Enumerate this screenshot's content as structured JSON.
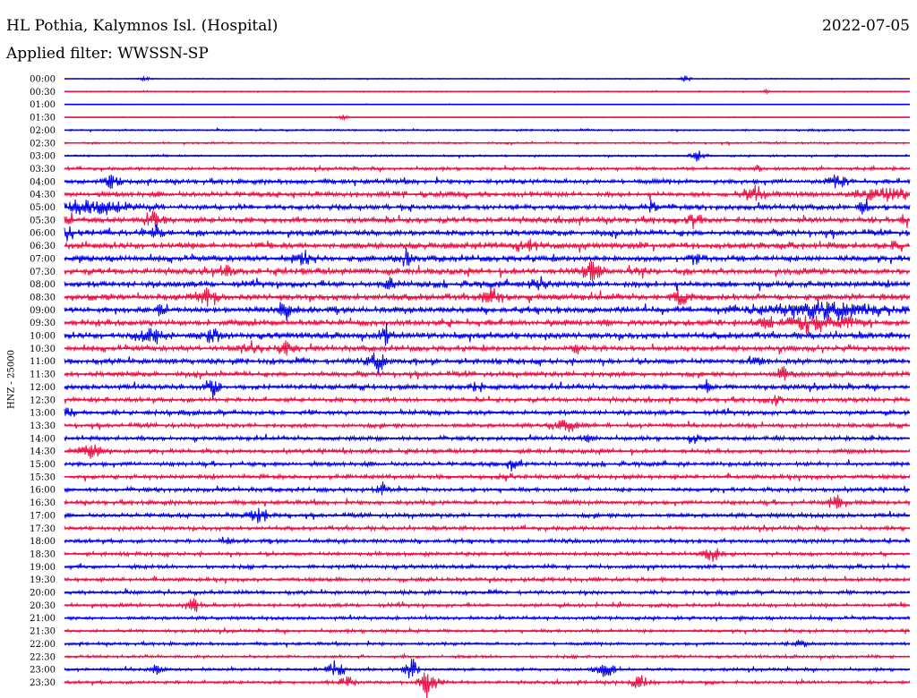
{
  "header": {
    "station": "HL Pothia, Kalymnos Isl. (Hospital)",
    "date": "2022-07-05",
    "filter": "Applied filter: WWSSN-SP",
    "channel_label": "HNZ - 25000"
  },
  "colors": {
    "trace_a": "#0000ee",
    "trace_b": "#ee1144"
  },
  "chart_data": {
    "type": "line",
    "title": "HL Pothia, Kalymnos Isl. (Hospital)",
    "subtitle": "Applied filter: WWSSN-SP",
    "date": "2022-07-05",
    "ylabel": "HNZ - 25000",
    "xlabel": "",
    "grid": false,
    "row_labels": [
      "00:00",
      "00:30",
      "01:00",
      "01:30",
      "02:00",
      "02:30",
      "03:00",
      "03:30",
      "04:00",
      "04:30",
      "05:00",
      "05:30",
      "06:00",
      "06:30",
      "07:00",
      "07:30",
      "08:00",
      "08:30",
      "09:00",
      "09:30",
      "10:00",
      "10:30",
      "11:00",
      "11:30",
      "12:00",
      "12:30",
      "13:00",
      "13:30",
      "14:00",
      "14:30",
      "15:00",
      "15:30",
      "16:00",
      "16:30",
      "17:00",
      "17:30",
      "18:00",
      "18:30",
      "19:00",
      "19:30",
      "20:00",
      "20:30",
      "21:00",
      "21:30",
      "22:00",
      "22:30",
      "23:00",
      "23:30"
    ],
    "row_colors": [
      "blue",
      "red"
    ],
    "noise_level": [
      0.4,
      0.5,
      0.3,
      0.4,
      0.8,
      0.9,
      0.9,
      1.5,
      2.2,
      2.5,
      2.5,
      2.8,
      2.8,
      3.0,
      3.0,
      3.0,
      3.0,
      3.0,
      3.0,
      3.0,
      3.0,
      2.6,
      2.6,
      2.4,
      2.4,
      2.2,
      2.2,
      2.0,
      2.0,
      2.0,
      2.0,
      2.0,
      2.0,
      2.0,
      2.0,
      1.9,
      1.9,
      1.8,
      1.8,
      1.8,
      1.8,
      1.7,
      1.6,
      1.5,
      1.4,
      1.4,
      1.4,
      1.5
    ],
    "events": [
      {
        "row": 0,
        "pos": 0.095,
        "amp": 4,
        "width": 0.006
      },
      {
        "row": 0,
        "pos": 0.735,
        "amp": 4,
        "width": 0.006
      },
      {
        "row": 1,
        "pos": 0.095,
        "amp": 2,
        "width": 0.005
      },
      {
        "row": 1,
        "pos": 0.83,
        "amp": 2,
        "width": 0.005
      },
      {
        "row": 3,
        "pos": 0.33,
        "amp": 3,
        "width": 0.006
      },
      {
        "row": 6,
        "pos": 0.75,
        "amp": 8,
        "width": 0.008
      },
      {
        "row": 7,
        "pos": 0.82,
        "amp": 4,
        "width": 0.006
      },
      {
        "row": 8,
        "pos": 0.055,
        "amp": 8,
        "width": 0.01
      },
      {
        "row": 8,
        "pos": 0.915,
        "amp": 9,
        "width": 0.01
      },
      {
        "row": 9,
        "pos": 0.815,
        "amp": 12,
        "width": 0.012
      },
      {
        "row": 9,
        "pos": 0.97,
        "amp": 7,
        "width": 0.03
      },
      {
        "row": 10,
        "pos": 0.035,
        "amp": 7,
        "width": 0.05
      },
      {
        "row": 10,
        "pos": 0.695,
        "amp": 8,
        "width": 0.006
      },
      {
        "row": 10,
        "pos": 0.945,
        "amp": 9,
        "width": 0.006
      },
      {
        "row": 11,
        "pos": 0.005,
        "amp": 8,
        "width": 0.006
      },
      {
        "row": 11,
        "pos": 0.105,
        "amp": 10,
        "width": 0.01
      },
      {
        "row": 11,
        "pos": 0.745,
        "amp": 7,
        "width": 0.01
      },
      {
        "row": 11,
        "pos": 0.995,
        "amp": 8,
        "width": 0.005
      },
      {
        "row": 12,
        "pos": 0.005,
        "amp": 9,
        "width": 0.006
      },
      {
        "row": 12,
        "pos": 0.11,
        "amp": 9,
        "width": 0.006
      },
      {
        "row": 13,
        "pos": 0.545,
        "amp": 10,
        "width": 0.01
      },
      {
        "row": 13,
        "pos": 0.98,
        "amp": 6,
        "width": 0.006
      },
      {
        "row": 14,
        "pos": 0.285,
        "amp": 9,
        "width": 0.012
      },
      {
        "row": 14,
        "pos": 0.405,
        "amp": 12,
        "width": 0.006
      },
      {
        "row": 14,
        "pos": 0.745,
        "amp": 8,
        "width": 0.006
      },
      {
        "row": 15,
        "pos": 0.19,
        "amp": 6,
        "width": 0.008
      },
      {
        "row": 15,
        "pos": 0.625,
        "amp": 11,
        "width": 0.01
      },
      {
        "row": 15,
        "pos": 0.68,
        "amp": 7,
        "width": 0.008
      },
      {
        "row": 16,
        "pos": 0.56,
        "amp": 10,
        "width": 0.008
      },
      {
        "row": 16,
        "pos": 0.385,
        "amp": 6,
        "width": 0.006
      },
      {
        "row": 17,
        "pos": 0.17,
        "amp": 11,
        "width": 0.012
      },
      {
        "row": 17,
        "pos": 0.505,
        "amp": 12,
        "width": 0.01
      },
      {
        "row": 17,
        "pos": 0.73,
        "amp": 8,
        "width": 0.01
      },
      {
        "row": 18,
        "pos": 0.115,
        "amp": 9,
        "width": 0.006
      },
      {
        "row": 18,
        "pos": 0.26,
        "amp": 10,
        "width": 0.01
      },
      {
        "row": 18,
        "pos": 0.9,
        "amp": 9,
        "width": 0.08
      },
      {
        "row": 19,
        "pos": 0.895,
        "amp": 10,
        "width": 0.04
      },
      {
        "row": 19,
        "pos": 0.83,
        "amp": 8,
        "width": 0.01
      },
      {
        "row": 20,
        "pos": 0.105,
        "amp": 8,
        "width": 0.015
      },
      {
        "row": 20,
        "pos": 0.175,
        "amp": 8,
        "width": 0.01
      },
      {
        "row": 20,
        "pos": 0.38,
        "amp": 12,
        "width": 0.006
      },
      {
        "row": 21,
        "pos": 0.22,
        "amp": 9,
        "width": 0.012
      },
      {
        "row": 21,
        "pos": 0.26,
        "amp": 9,
        "width": 0.008
      },
      {
        "row": 21,
        "pos": 0.61,
        "amp": 7,
        "width": 0.008
      },
      {
        "row": 22,
        "pos": 0.37,
        "amp": 12,
        "width": 0.01
      },
      {
        "row": 22,
        "pos": 0.82,
        "amp": 5,
        "width": 0.006
      },
      {
        "row": 23,
        "pos": 0.85,
        "amp": 8,
        "width": 0.008
      },
      {
        "row": 24,
        "pos": 0.175,
        "amp": 11,
        "width": 0.01
      },
      {
        "row": 24,
        "pos": 0.49,
        "amp": 7,
        "width": 0.008
      },
      {
        "row": 24,
        "pos": 0.76,
        "amp": 7,
        "width": 0.006
      },
      {
        "row": 25,
        "pos": 0.84,
        "amp": 8,
        "width": 0.006
      },
      {
        "row": 26,
        "pos": 0.005,
        "amp": 7,
        "width": 0.006
      },
      {
        "row": 27,
        "pos": 0.595,
        "amp": 9,
        "width": 0.012
      },
      {
        "row": 28,
        "pos": 0.62,
        "amp": 5,
        "width": 0.006
      },
      {
        "row": 28,
        "pos": 0.745,
        "amp": 6,
        "width": 0.006
      },
      {
        "row": 29,
        "pos": 0.03,
        "amp": 9,
        "width": 0.015
      },
      {
        "row": 30,
        "pos": 0.53,
        "amp": 8,
        "width": 0.008
      },
      {
        "row": 31,
        "pos": 0.52,
        "amp": 5,
        "width": 0.006
      },
      {
        "row": 32,
        "pos": 0.375,
        "amp": 7,
        "width": 0.008
      },
      {
        "row": 33,
        "pos": 0.915,
        "amp": 9,
        "width": 0.01
      },
      {
        "row": 34,
        "pos": 0.23,
        "amp": 10,
        "width": 0.012
      },
      {
        "row": 36,
        "pos": 0.19,
        "amp": 5,
        "width": 0.006
      },
      {
        "row": 37,
        "pos": 0.765,
        "amp": 11,
        "width": 0.01
      },
      {
        "row": 41,
        "pos": 0.15,
        "amp": 8,
        "width": 0.01
      },
      {
        "row": 44,
        "pos": 0.87,
        "amp": 6,
        "width": 0.006
      },
      {
        "row": 46,
        "pos": 0.11,
        "amp": 7,
        "width": 0.006
      },
      {
        "row": 46,
        "pos": 0.32,
        "amp": 10,
        "width": 0.01
      },
      {
        "row": 46,
        "pos": 0.41,
        "amp": 16,
        "width": 0.007
      },
      {
        "row": 46,
        "pos": 0.64,
        "amp": 9,
        "width": 0.012
      },
      {
        "row": 47,
        "pos": 0.335,
        "amp": 7,
        "width": 0.008
      },
      {
        "row": 47,
        "pos": 0.43,
        "amp": 20,
        "width": 0.01
      },
      {
        "row": 47,
        "pos": 0.68,
        "amp": 8,
        "width": 0.01
      }
    ]
  }
}
